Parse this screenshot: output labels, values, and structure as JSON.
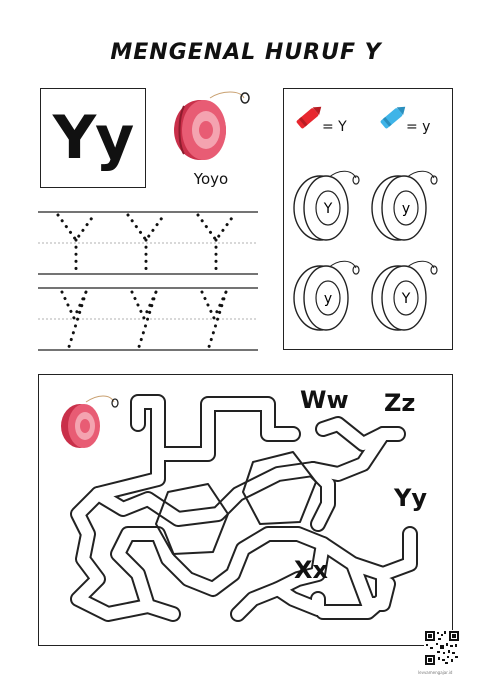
{
  "title": "MENGENAL HURUF Y",
  "letter_pair": "Yy",
  "picture_word": "Yoyo",
  "color_key": {
    "red_label": "= Y",
    "blue_label": "= y",
    "red_color": "#e8272f",
    "blue_color": "#3fb4e8"
  },
  "coloring_items": [
    "Y",
    "y",
    "y",
    "Y"
  ],
  "maze": {
    "letters": [
      "Ww",
      "Zz",
      "Yy",
      "Xx"
    ]
  },
  "footer": {
    "qr_caption": "levvamengajar.id"
  },
  "icons": [
    "yoyo-icon",
    "red-crayon-icon",
    "blue-crayon-icon",
    "qr-code-icon"
  ]
}
